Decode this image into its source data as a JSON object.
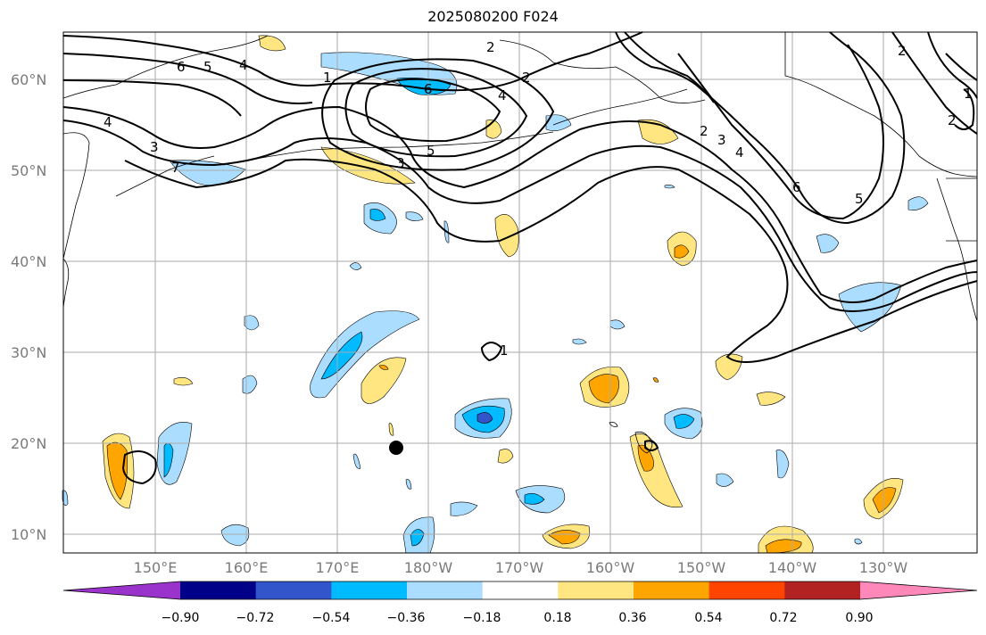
{
  "title": "2025080200 F024",
  "lat_labels": [
    "10°N",
    "20°N",
    "30°N",
    "40°N",
    "50°N",
    "60°N"
  ],
  "lon_labels": [
    "150°E",
    "160°E",
    "170°E",
    "180°W",
    "170°W",
    "160°W",
    "150°W",
    "140°W",
    "130°W"
  ],
  "colorbar": {
    "colors": [
      "#9933cc",
      "#000088",
      "#3355cc",
      "#00bbff",
      "#aaddff",
      "#ffffff",
      "#ffe680",
      "#ffa500",
      "#ff4400",
      "#b22222",
      "#ff88bb"
    ],
    "ticks": [
      "−0.90",
      "−0.72",
      "−0.54",
      "−0.36",
      "−0.18",
      "0.18",
      "0.36",
      "0.54",
      "0.72",
      "0.90"
    ]
  },
  "contour_labels": [
    "1",
    "2",
    "3",
    "4",
    "5",
    "6",
    "7"
  ],
  "colors": {
    "land_outline": "#000000",
    "grid": "#aaaaaa",
    "contour": "#000000"
  }
}
